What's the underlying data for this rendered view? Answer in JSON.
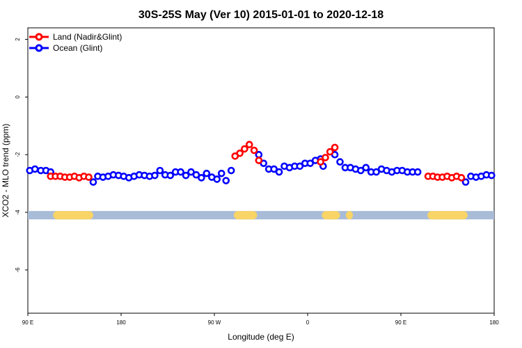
{
  "chart_data": {
    "type": "scatter",
    "title": "30S-25S May (Ver 10)   2015-01-01 to 2020-12-18",
    "xlabel": "Longitude (deg E)",
    "ylabel": "XCO2 - MLO trend (ppm)",
    "xlim": [
      0,
      360
    ],
    "ylim": [
      -7.5,
      2.4
    ],
    "x_ticks": [
      0,
      72,
      144,
      216,
      288,
      360
    ],
    "x_tick_labels": [
      "90 E",
      "180",
      "90 W",
      "0",
      "90 E",
      "180"
    ],
    "y_ticks": [
      2,
      0,
      -2,
      -4,
      -6
    ],
    "y_tick_labels": [
      "2",
      "0",
      "-2",
      "-4",
      "-6"
    ],
    "grid": false,
    "legend": "top-left",
    "series": [
      {
        "name": "Land (Nadir&Glint)",
        "color": "#ff0000",
        "points": [
          [
            17.6,
            -2.75
          ],
          [
            21.3,
            -2.75
          ],
          [
            25.0,
            -2.75
          ],
          [
            28.6,
            -2.78
          ],
          [
            32.3,
            -2.78
          ],
          [
            36.0,
            -2.75
          ],
          [
            39.6,
            -2.8
          ],
          [
            43.3,
            -2.75
          ],
          [
            47.0,
            -2.78
          ],
          [
            160.0,
            -2.05
          ],
          [
            163.7,
            -1.95
          ],
          [
            167.3,
            -1.8
          ],
          [
            171.0,
            -1.65
          ],
          [
            174.7,
            -1.85
          ],
          [
            178.3,
            -2.2
          ],
          [
            226.0,
            -2.25
          ],
          [
            229.7,
            -2.1
          ],
          [
            233.3,
            -1.9
          ],
          [
            237.0,
            -1.75
          ],
          [
            309.0,
            -2.75
          ],
          [
            312.7,
            -2.75
          ],
          [
            316.3,
            -2.78
          ],
          [
            320.0,
            -2.78
          ],
          [
            323.7,
            -2.75
          ],
          [
            327.3,
            -2.8
          ],
          [
            331.0,
            -2.75
          ],
          [
            334.7,
            -2.8
          ]
        ]
      },
      {
        "name": "Ocean (Glint)",
        "color": "#0000ff",
        "points": [
          [
            1.5,
            -2.55
          ],
          [
            5.5,
            -2.5
          ],
          [
            10.0,
            -2.55
          ],
          [
            14.0,
            -2.55
          ],
          [
            17.6,
            -2.6
          ],
          [
            50.5,
            -2.95
          ],
          [
            54.0,
            -2.75
          ],
          [
            58.0,
            -2.78
          ],
          [
            62.0,
            -2.75
          ],
          [
            66.0,
            -2.7
          ],
          [
            70.0,
            -2.72
          ],
          [
            74.0,
            -2.75
          ],
          [
            78.0,
            -2.8
          ],
          [
            82.0,
            -2.75
          ],
          [
            86.0,
            -2.7
          ],
          [
            90.0,
            -2.72
          ],
          [
            94.0,
            -2.75
          ],
          [
            98.0,
            -2.72
          ],
          [
            102.0,
            -2.55
          ],
          [
            106.0,
            -2.7
          ],
          [
            110.0,
            -2.72
          ],
          [
            114.0,
            -2.6
          ],
          [
            118.0,
            -2.6
          ],
          [
            122.0,
            -2.72
          ],
          [
            126.0,
            -2.6
          ],
          [
            130.0,
            -2.7
          ],
          [
            134.0,
            -2.8
          ],
          [
            138.0,
            -2.65
          ],
          [
            142.0,
            -2.78
          ],
          [
            146.0,
            -2.85
          ],
          [
            149.5,
            -2.65
          ],
          [
            153.0,
            -2.9
          ],
          [
            157.0,
            -2.55
          ],
          [
            178.3,
            -2.0
          ],
          [
            182.0,
            -2.3
          ],
          [
            186.0,
            -2.5
          ],
          [
            190.0,
            -2.5
          ],
          [
            194.0,
            -2.6
          ],
          [
            198.0,
            -2.4
          ],
          [
            202.0,
            -2.45
          ],
          [
            206.0,
            -2.4
          ],
          [
            210.0,
            -2.4
          ],
          [
            214.0,
            -2.3
          ],
          [
            218.0,
            -2.3
          ],
          [
            222.0,
            -2.2
          ],
          [
            226.0,
            -2.15
          ],
          [
            228.0,
            -2.4
          ],
          [
            237.0,
            -2.0
          ],
          [
            241.0,
            -2.25
          ],
          [
            245.0,
            -2.45
          ],
          [
            249.0,
            -2.45
          ],
          [
            253.0,
            -2.5
          ],
          [
            257.0,
            -2.55
          ],
          [
            261.0,
            -2.45
          ],
          [
            265.0,
            -2.6
          ],
          [
            269.0,
            -2.6
          ],
          [
            273.0,
            -2.5
          ],
          [
            277.0,
            -2.55
          ],
          [
            281.0,
            -2.6
          ],
          [
            285.0,
            -2.55
          ],
          [
            289.0,
            -2.55
          ],
          [
            293.0,
            -2.6
          ],
          [
            297.0,
            -2.6
          ],
          [
            301.0,
            -2.6
          ],
          [
            338.0,
            -2.95
          ],
          [
            342.0,
            -2.75
          ],
          [
            346.0,
            -2.78
          ],
          [
            350.0,
            -2.75
          ],
          [
            354.0,
            -2.7
          ],
          [
            358.0,
            -2.72
          ]
        ]
      }
    ],
    "surface_bar": {
      "y": -4.1,
      "ocean_color": "#a8bcd8",
      "land_color": "#f9d466",
      "land_segments": [
        [
          19.5,
          50.5
        ],
        [
          159.0,
          177.0
        ],
        [
          227.0,
          241.0
        ],
        [
          245.5,
          251.0
        ],
        [
          308.5,
          339.5
        ]
      ]
    }
  }
}
